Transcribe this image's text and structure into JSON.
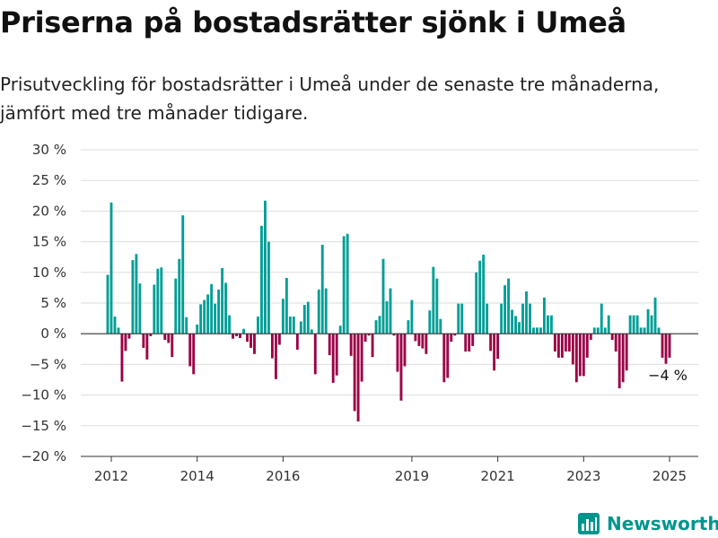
{
  "header": {
    "title": "Priserna på bostadsrätter sjönk i Umeå",
    "subtitle": "Prisutveckling för bostadsrätter i Umeå under de senaste tre månaderna, jämfört med tre månader tidigare."
  },
  "brand": {
    "name": "Newsworthy",
    "icon": "newsworthy-logo-icon"
  },
  "colors": {
    "positive": "#009e96",
    "negative": "#9b0046",
    "grid": "#dddddd",
    "axis": "#333333"
  },
  "chart_data": {
    "type": "bar",
    "x_start": "2011-12",
    "x_end": "2025-01",
    "ylim": [
      -20,
      30
    ],
    "yticks": [
      -20,
      -15,
      -10,
      -5,
      0,
      5,
      10,
      15,
      20,
      25,
      30
    ],
    "ytick_labels": [
      "−20 %",
      "−15 %",
      "−10 %",
      "−5 %",
      "0 %",
      "5 %",
      "10 %",
      "15 %",
      "20 %",
      "25 %",
      "30 %"
    ],
    "xtick_labels": [
      "2012",
      "2014",
      "2016",
      "2019",
      "2021",
      "2023",
      "2025"
    ],
    "annotation": "−4 %",
    "values": [
      9.6,
      21.4,
      2.8,
      1.0,
      -7.8,
      -2.8,
      -0.8,
      12.0,
      13.0,
      8.2,
      -2.3,
      -4.2,
      -0.4,
      8.0,
      10.6,
      10.8,
      -1.0,
      -1.5,
      -3.8,
      9.0,
      12.2,
      19.3,
      2.7,
      -5.3,
      -6.6,
      1.5,
      4.8,
      5.5,
      6.4,
      8.1,
      4.9,
      7.2,
      10.7,
      8.3,
      3.0,
      -0.8,
      -0.4,
      -0.7,
      0.8,
      -1.3,
      -2.3,
      -3.3,
      2.8,
      17.6,
      21.7,
      15.0,
      -4.0,
      -7.4,
      -1.8,
      5.7,
      9.1,
      2.8,
      2.8,
      -2.6,
      2.0,
      4.7,
      5.2,
      0.7,
      -6.6,
      7.2,
      14.5,
      7.4,
      -3.5,
      -8.0,
      -6.8,
      1.3,
      15.9,
      16.3,
      -3.6,
      -12.6,
      -14.3,
      -7.8,
      -1.3,
      -0.3,
      -3.8,
      2.2,
      2.9,
      12.2,
      5.3,
      7.4,
      -0.3,
      -6.2,
      -10.9,
      -5.3,
      2.2,
      5.5,
      -1.2,
      -2.0,
      -2.4,
      -3.3,
      3.8,
      10.9,
      9.0,
      2.4,
      -7.9,
      -7.2,
      -1.3,
      -0.3,
      4.9,
      4.9,
      -2.9,
      -2.9,
      -2.0,
      10.0,
      11.9,
      12.9,
      4.9,
      -2.8,
      -6.0,
      -4.1,
      4.9,
      7.9,
      9.0,
      3.9,
      2.9,
      1.9,
      4.9,
      6.9,
      4.9,
      1.0,
      1.0,
      1.0,
      5.9,
      3.0,
      3.0,
      -2.9,
      -3.9,
      -3.9,
      -2.9,
      -2.9,
      -5.0,
      -7.9,
      -6.9,
      -6.9,
      -3.9,
      -1.0,
      1.0,
      1.0,
      4.9,
      1.0,
      3.0,
      -1.0,
      -2.9,
      -8.9,
      -7.9,
      -6.0,
      3.0,
      3.0,
      3.0,
      1.0,
      1.0,
      4.0,
      3.0,
      5.9,
      1.0,
      -3.9,
      -4.9,
      -3.9
    ]
  }
}
